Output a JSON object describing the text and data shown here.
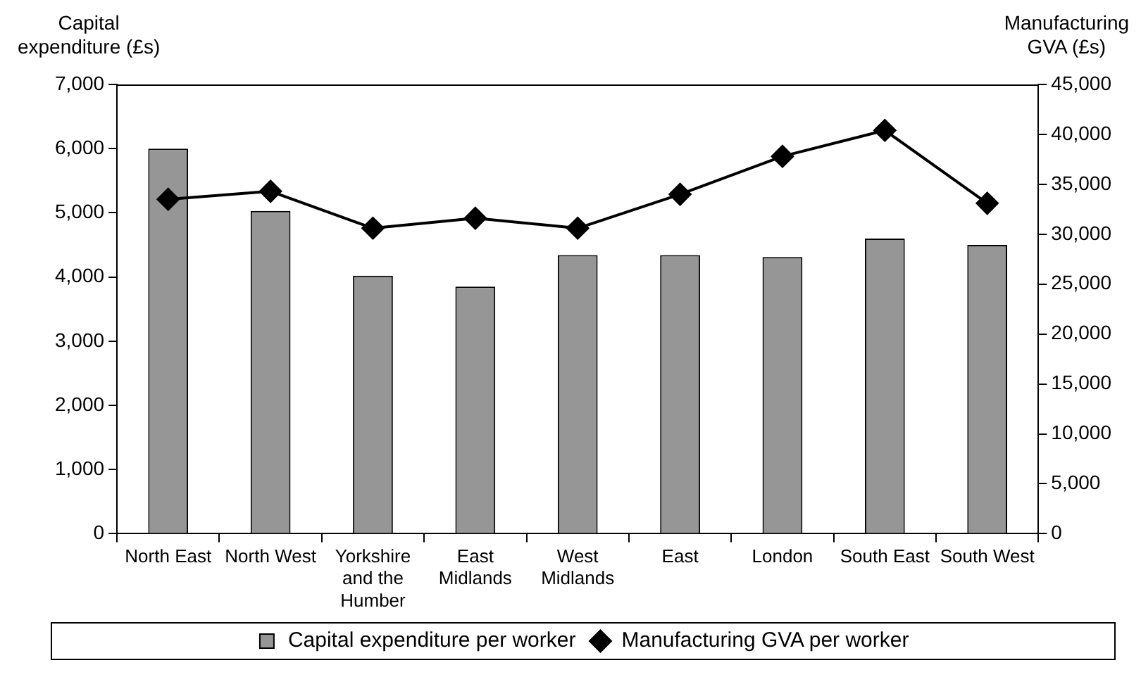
{
  "chart_data": {
    "type": "bar",
    "categories": [
      "North East",
      "North West",
      "Yorkshire and the Humber",
      "East Midlands",
      "West Midlands",
      "East",
      "London",
      "South East",
      "South West"
    ],
    "ylabel": "Capital expenditure (£s)",
    "y2label": "Manufacturing GVA (£s)",
    "series": [
      {
        "name": "Capital expenditure per worker",
        "color": "#969696",
        "values": [
          6000,
          5030,
          4020,
          3850,
          4340,
          4340,
          4310,
          4600,
          4500
        ]
      },
      {
        "name": "Manufacturing GVA per worker",
        "type": "line",
        "axis": "y2",
        "color": "#000000",
        "marker": "diamond",
        "values": [
          33500,
          34300,
          30600,
          31600,
          30600,
          34000,
          37800,
          40400,
          33100
        ]
      }
    ],
    "ylim": [
      0,
      7000
    ],
    "yticks": [
      0,
      {
        "value": 1000,
        "label": "1,000"
      },
      {
        "value": 2000,
        "label": "2,000"
      },
      {
        "value": 3000,
        "label": "3,000"
      },
      {
        "value": 4000,
        "label": "4,000"
      },
      {
        "value": 5000,
        "label": "5,000"
      },
      {
        "value": 6000,
        "label": "6,000"
      },
      {
        "value": 7000,
        "label": "7,000"
      }
    ],
    "y2lim": [
      0,
      45000
    ],
    "y2ticks": [
      0,
      {
        "value": 5000,
        "label": "5,000"
      },
      {
        "value": 10000,
        "label": "10,000"
      },
      {
        "value": 15000,
        "label": "15,000"
      },
      {
        "value": 20000,
        "label": "20,000"
      },
      {
        "value": 25000,
        "label": "25,000"
      },
      {
        "value": 30000,
        "label": "30,000"
      },
      {
        "value": 35000,
        "label": "35,000"
      },
      {
        "value": 40000,
        "label": "40,000"
      },
      {
        "value": 45000,
        "label": "45,000"
      }
    ],
    "grid": false,
    "legend": "bottom"
  }
}
